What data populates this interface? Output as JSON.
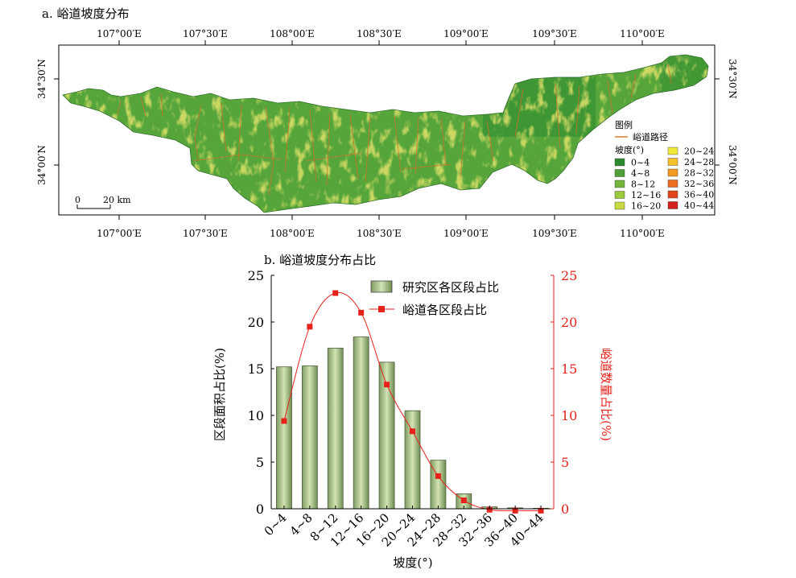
{
  "panel_a": {
    "title": "a. 峪道坡度分布",
    "lon_labels": [
      "107°00′E",
      "107°30′E",
      "108°00′E",
      "108°30′E",
      "109°00′E",
      "109°30′E",
      "110°00′E"
    ],
    "lat_labels": [
      "34°30′N",
      "34°00′N"
    ],
    "scalebar_zero": "0",
    "scalebar_label": "20 km",
    "legend": {
      "title": "图例",
      "route_label": "峪道路径",
      "route_color": "#d97a2a",
      "slope_title": "坡度(°)",
      "classes": [
        {
          "label": "0~4",
          "color": "#2c8a2e"
        },
        {
          "label": "4~8",
          "color": "#4fa137"
        },
        {
          "label": "8~12",
          "color": "#72b53a"
        },
        {
          "label": "12~16",
          "color": "#9cc83c"
        },
        {
          "label": "16~20",
          "color": "#c7da42"
        },
        {
          "label": "20~24",
          "color": "#f2e93a"
        },
        {
          "label": "24~28",
          "color": "#f6c22b"
        },
        {
          "label": "28~32",
          "color": "#f29a24"
        },
        {
          "label": "32~36",
          "color": "#ec6e1f"
        },
        {
          "label": "36~40",
          "color": "#e2441c"
        },
        {
          "label": "40~44",
          "color": "#d2201a"
        }
      ]
    }
  },
  "chart_data": {
    "type": "bar",
    "title": "b. 峪道坡度分布占比",
    "categories": [
      "0~4",
      "4~8",
      "8~12",
      "12~16",
      "16~20",
      "20~24",
      "24~28",
      "28~32",
      "32~36",
      "36~40",
      "40~44"
    ],
    "xlabel": "坡度(°)",
    "ylabel": "区段面积占比(%)",
    "y2label": "峪道数量占比(%)",
    "ylim": [
      0,
      25
    ],
    "y2lim": [
      0,
      25
    ],
    "yticks": [
      "0",
      "5",
      "10",
      "15",
      "20",
      "25"
    ],
    "series": [
      {
        "name": "研究区各区段占比",
        "type": "bar",
        "axis": "left",
        "color": "#a6c08a",
        "values": [
          15.2,
          15.3,
          17.2,
          18.4,
          15.7,
          10.5,
          5.2,
          1.6,
          0.2,
          0.1,
          0.05
        ]
      },
      {
        "name": "峪道各区段占比",
        "type": "line",
        "axis": "right",
        "color": "#e8211a",
        "values": [
          9.4,
          19.5,
          23.1,
          21.0,
          13.3,
          8.3,
          3.5,
          0.9,
          -0.1,
          -0.2,
          -0.2
        ]
      }
    ],
    "legend_position": "top-right",
    "y2_color": "#e8211a"
  }
}
